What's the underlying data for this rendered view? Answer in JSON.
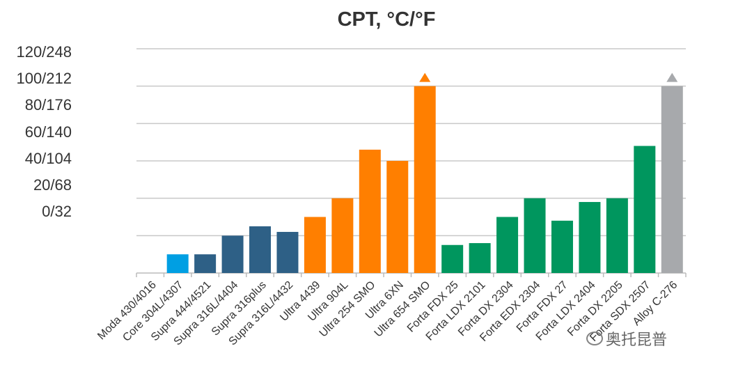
{
  "chart_data": {
    "type": "bar",
    "title": "CPT, °C/°F",
    "xlabel": "",
    "ylabel": "",
    "ylim": [
      0,
      120
    ],
    "grid": true,
    "y_tick_labels": [
      "120/248",
      "100/212",
      "80/176",
      "60/140",
      "40/104",
      "20/68",
      "0/32"
    ],
    "categories": [
      "Moda 430/4016",
      "Core 304L/4307",
      "Supra 444/4521",
      "Supra 316L/4404",
      "Supra 316plus",
      "Supra 316L/4432",
      "Ultra 4439",
      "Ultra 904L",
      "Ultra 254 SMO",
      "Ultra 6XN",
      "Ultra 654 SMO",
      "Forta FDX 25",
      "Forta LDX 2101",
      "Forta DX 2304",
      "Forta EDX 2304",
      "Forta FDX 27",
      "Forta LDX 2404",
      "Forta DX 2205",
      "Forta SDX 2507",
      "Alloy C-276"
    ],
    "values": [
      0,
      10,
      10,
      20,
      25,
      22,
      30,
      40,
      66,
      60,
      100,
      15,
      16,
      30,
      40,
      28,
      38,
      40,
      68,
      100
    ],
    "exceeds_axis": [
      false,
      false,
      false,
      false,
      false,
      false,
      false,
      false,
      false,
      false,
      true,
      false,
      false,
      false,
      false,
      false,
      false,
      false,
      false,
      true
    ],
    "bar_colors": [
      "#009fe3",
      "#009fe3",
      "#2e6086",
      "#2e6086",
      "#2e6086",
      "#2e6086",
      "#ff7f00",
      "#ff7f00",
      "#ff7f00",
      "#ff7f00",
      "#ff7f00",
      "#00965e",
      "#00965e",
      "#00965e",
      "#00965e",
      "#00965e",
      "#00965e",
      "#00965e",
      "#00965e",
      "#a7a9ac"
    ]
  },
  "watermark": {
    "text": "奥托昆普",
    "icon": "wechat-icon"
  }
}
